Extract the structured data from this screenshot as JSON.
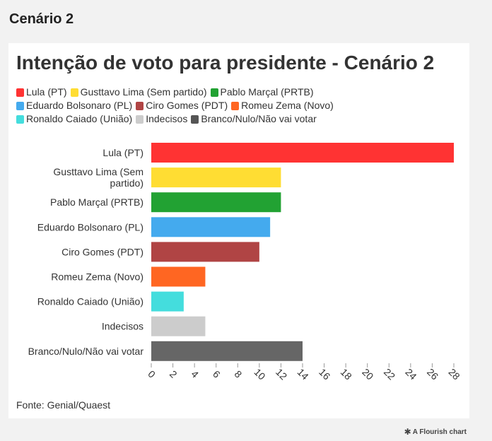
{
  "page_heading": "Cenário 2",
  "title": "Intenção de voto para presidente - Cenário 2",
  "source": "Fonte: Genial/Quaest",
  "credit": {
    "icon": "flourish-logo-icon",
    "text": "A Flourish chart"
  },
  "legend": [
    [
      {
        "label": "Lula (PT)",
        "color": "#ff3333"
      },
      {
        "label": "Gusttavo Lima (Sem partido)",
        "color": "#ffdd33"
      },
      {
        "label": "Pablo Marçal (PRTB)",
        "color": "#22a233"
      }
    ],
    [
      {
        "label": "Eduardo Bolsonaro (PL)",
        "color": "#44aaee"
      },
      {
        "label": "Ciro Gomes (PDT)",
        "color": "#b04444"
      },
      {
        "label": "Romeu Zema (Novo)",
        "color": "#ff6622"
      }
    ],
    [
      {
        "label": "Ronaldo Caiado (União)",
        "color": "#44dddd"
      },
      {
        "label": "Indecisos",
        "color": "#cccccc"
      },
      {
        "label": "Branco/Nulo/Não vai votar",
        "color": "#555555"
      }
    ]
  ],
  "chart_data": {
    "type": "bar",
    "orientation": "horizontal",
    "categories": [
      "Lula (PT)",
      "Gusttavo Lima (Sem partido)",
      "Pablo Marçal (PRTB)",
      "Eduardo Bolsonaro (PL)",
      "Ciro Gomes (PDT)",
      "Romeu Zema (Novo)",
      "Ronaldo Caiado (União)",
      "Indecisos",
      "Branco/Nulo/Não vai votar"
    ],
    "values": [
      28,
      12,
      12,
      11,
      10,
      5,
      3,
      5,
      14
    ],
    "colors": [
      "#ff3333",
      "#ffdd33",
      "#22a233",
      "#44aaee",
      "#b04444",
      "#ff6622",
      "#44dddd",
      "#cccccc",
      "#666666"
    ],
    "xlim": [
      0,
      28
    ],
    "xticks": [
      0,
      2,
      4,
      6,
      8,
      10,
      12,
      14,
      16,
      18,
      20,
      22,
      24,
      26,
      28
    ],
    "grid": false
  }
}
